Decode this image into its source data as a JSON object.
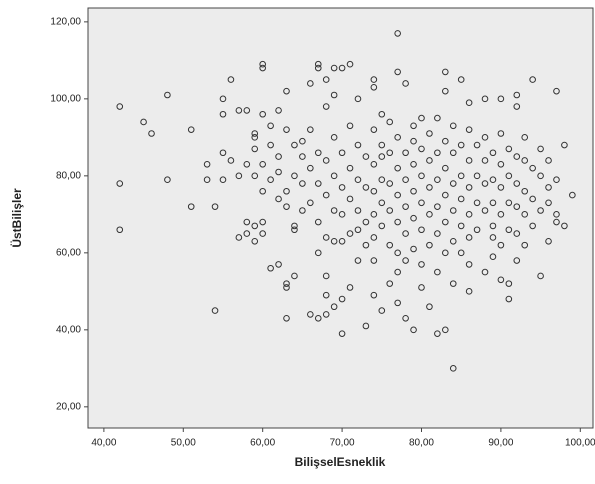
{
  "chart_data": {
    "type": "scatter",
    "x_label": "BilişselEsneklik",
    "y_label": "ÜstBilişler",
    "xlim": [
      38,
      101.6
    ],
    "ylim": [
      14.5,
      123.6
    ],
    "xticks": [
      {
        "value": 40,
        "label": "40,00"
      },
      {
        "value": 50,
        "label": "50,00"
      },
      {
        "value": 60,
        "label": "60,00"
      },
      {
        "value": 70,
        "label": "70,00"
      },
      {
        "value": 80,
        "label": "80,00"
      },
      {
        "value": 90,
        "label": "90,00"
      },
      {
        "value": 100,
        "label": "100,00"
      }
    ],
    "yticks": [
      {
        "value": 20,
        "label": "20,00"
      },
      {
        "value": 40,
        "label": "40,00"
      },
      {
        "value": 60,
        "label": "60,00"
      },
      {
        "value": 80,
        "label": "80,00"
      },
      {
        "value": 100,
        "label": "100,00"
      },
      {
        "value": 120,
        "label": "120,00"
      }
    ],
    "background": "#ececec",
    "color": "#333333",
    "x": [
      42,
      42,
      42,
      45,
      46,
      48,
      48,
      51,
      51,
      53,
      53,
      54,
      54,
      55,
      55,
      55,
      55,
      56,
      56,
      57,
      57,
      57,
      58,
      58,
      58,
      58,
      59,
      59,
      59,
      59,
      59,
      59,
      60,
      60,
      60,
      60,
      60,
      60,
      60,
      61,
      61,
      61,
      61,
      62,
      62,
      62,
      62,
      63,
      63,
      63,
      63,
      63,
      63,
      64,
      64,
      64,
      64,
      65,
      65,
      65,
      66,
      66,
      67,
      67,
      67,
      67,
      68,
      68,
      68,
      68,
      68,
      69,
      69,
      69,
      70,
      70,
      70,
      70,
      71,
      71,
      72,
      72,
      73,
      73,
      74,
      74,
      74,
      74,
      75,
      75,
      75,
      76,
      76,
      77,
      77,
      77,
      77,
      78,
      78,
      79,
      79,
      80,
      80,
      81,
      82,
      82,
      83,
      83,
      83,
      84,
      84,
      85,
      85,
      86,
      86,
      87,
      88,
      88,
      89,
      90,
      90,
      91,
      91,
      92,
      92,
      93,
      94,
      95,
      96,
      97,
      97,
      98,
      99,
      98,
      96,
      95,
      93,
      92,
      90,
      65,
      66,
      66,
      67,
      67,
      68,
      68,
      68,
      69,
      69,
      69,
      70,
      70,
      70,
      71,
      71,
      71,
      71,
      72,
      72,
      72,
      73,
      73,
      73,
      74,
      74,
      74,
      74,
      74,
      75,
      75,
      75,
      76,
      76,
      76,
      76,
      77,
      77,
      77,
      77,
      77,
      78,
      78,
      78,
      78,
      79,
      79,
      79,
      79,
      79,
      80,
      80,
      80,
      80,
      81,
      81,
      81,
      81,
      81,
      82,
      82,
      82,
      82,
      82,
      83,
      83,
      83,
      83,
      83,
      84,
      84,
      84,
      84,
      84,
      85,
      85,
      85,
      85,
      86,
      86,
      86,
      86,
      86,
      87,
      87,
      87,
      88,
      88,
      88,
      88,
      89,
      89,
      89,
      89,
      90,
      90,
      90,
      90,
      91,
      91,
      91,
      91,
      92,
      92,
      92,
      93,
      93,
      93,
      94,
      94,
      94,
      95,
      95,
      96,
      96,
      97,
      97,
      62,
      63,
      64,
      66,
      67,
      69,
      72,
      75,
      78,
      80,
      86,
      89,
      92
    ],
    "values": [
      98,
      78,
      66,
      94,
      91,
      101,
      79,
      92,
      72,
      83,
      79,
      72,
      45,
      86,
      79,
      100,
      96,
      84,
      105,
      97,
      80,
      64,
      97,
      83,
      68,
      65,
      91,
      90,
      87,
      80,
      67,
      63,
      109,
      108,
      96,
      83,
      76,
      68,
      65,
      93,
      88,
      56,
      79,
      97,
      57,
      74,
      85,
      102,
      92,
      72,
      52,
      51,
      43,
      66,
      54,
      67,
      80,
      71,
      85,
      89,
      104,
      44,
      109,
      108,
      43,
      60,
      105,
      98,
      54,
      49,
      44,
      101,
      108,
      46,
      108,
      39,
      48,
      63,
      109,
      51,
      100,
      58,
      41,
      62,
      105,
      103,
      58,
      49,
      85,
      67,
      45,
      94,
      52,
      117,
      107,
      55,
      47,
      43,
      104,
      93,
      40,
      51,
      95,
      46,
      39,
      55,
      107,
      40,
      102,
      30,
      52,
      105,
      60,
      50,
      99,
      88,
      100,
      55,
      64,
      100,
      53,
      48,
      52,
      101,
      98,
      70,
      105,
      54,
      63,
      102,
      68,
      88,
      75,
      67,
      77,
      80,
      84,
      65,
      77,
      78,
      82,
      73,
      86,
      68,
      84,
      75,
      64,
      90,
      80,
      71,
      86,
      77,
      70,
      93,
      82,
      74,
      65,
      88,
      79,
      71,
      85,
      77,
      68,
      92,
      83,
      76,
      70,
      64,
      88,
      79,
      73,
      86,
      78,
      71,
      62,
      90,
      82,
      75,
      68,
      60,
      86,
      79,
      72,
      65,
      89,
      83,
      76,
      69,
      61,
      87,
      80,
      73,
      66,
      91,
      84,
      77,
      70,
      62,
      95,
      86,
      79,
      72,
      65,
      89,
      82,
      75,
      68,
      60,
      93,
      86,
      78,
      71,
      63,
      88,
      80,
      74,
      67,
      92,
      84,
      77,
      70,
      64,
      80,
      73,
      66,
      90,
      84,
      78,
      71,
      86,
      79,
      73,
      67,
      91,
      83,
      70,
      62,
      87,
      80,
      73,
      66,
      85,
      78,
      72,
      90,
      76,
      62,
      82,
      74,
      67,
      87,
      71,
      84,
      73,
      79,
      70,
      81,
      76,
      88,
      92,
      78,
      63,
      66,
      96,
      58,
      57,
      57,
      59,
      58
    ]
  }
}
